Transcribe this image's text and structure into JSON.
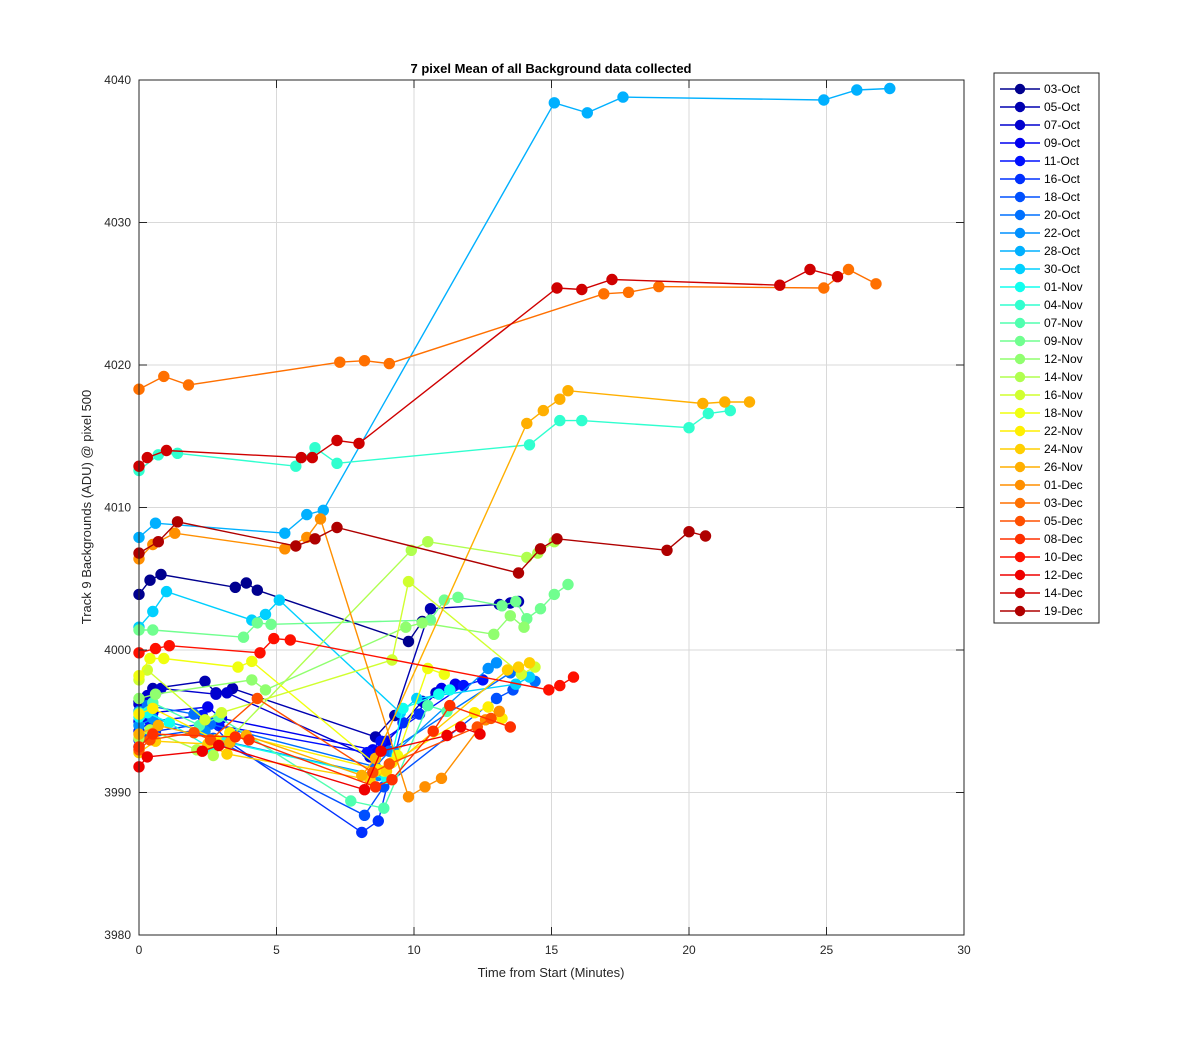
{
  "chart_data": {
    "type": "line",
    "title": "7 pixel Mean of all Background data collected",
    "xlabel": "Time from Start (Minutes)",
    "ylabel": "Track 9 Backgrounds (ADU) @ pixel 500",
    "xlim": [
      0,
      30
    ],
    "ylim": [
      3980,
      4040
    ],
    "xticks": [
      0,
      5,
      10,
      15,
      20,
      25,
      30
    ],
    "yticks": [
      3980,
      3990,
      4000,
      4010,
      4020,
      4030,
      4040
    ],
    "grid": true,
    "legend_position": "outside-right",
    "series": [
      {
        "name": "03-Oct",
        "color": "#00008f",
        "x": [
          0,
          0.4,
          0.8,
          3.5,
          3.9,
          4.3,
          9.8,
          10.3
        ],
        "y": [
          4003.9,
          4004.9,
          4005.3,
          4004.4,
          4004.7,
          4004.2,
          4000.6,
          4002.0
        ]
      },
      {
        "name": "05-Oct",
        "color": "#0000b0",
        "x": [
          0,
          0.5,
          2.4,
          2.8,
          3.4,
          8.6,
          9.3,
          10.6,
          13.1,
          13.5,
          13.8
        ],
        "y": [
          3996.4,
          3997.3,
          3997.8,
          3997.0,
          3997.3,
          3993.9,
          3995.4,
          4002.9,
          4003.2,
          4003.3,
          4003.4
        ]
      },
      {
        "name": "07-Oct",
        "color": "#0000cf",
        "x": [
          0,
          0.3,
          0.8,
          2.8,
          3.2,
          8.4,
          8.9,
          10.3,
          10.8
        ],
        "y": [
          3996.2,
          3996.8,
          3997.3,
          3996.9,
          3997.0,
          3992.5,
          3993.3,
          3996.4,
          3997.0
        ]
      },
      {
        "name": "09-Oct",
        "color": "#0000ef",
        "x": [
          0,
          0.5,
          2.5,
          3.0,
          8.5,
          9.0,
          11.0,
          11.5
        ],
        "y": [
          3995.0,
          3995.6,
          3996.0,
          3995.2,
          3993.0,
          3993.6,
          3997.3,
          3997.6
        ]
      },
      {
        "name": "11-Oct",
        "color": "#0010ff",
        "x": [
          0,
          0.4,
          2.3,
          2.9,
          8.3,
          8.8,
          11.8,
          12.5
        ],
        "y": [
          3994.3,
          3995.0,
          3995.4,
          3994.7,
          3992.8,
          3993.6,
          3997.5,
          3997.9
        ]
      },
      {
        "name": "16-Oct",
        "color": "#0030ff",
        "x": [
          0,
          0.6,
          2.6,
          3.3,
          8.1,
          8.7,
          9.6,
          10.2
        ],
        "y": [
          3993.7,
          3994.3,
          3994.9,
          3993.5,
          3987.2,
          3988.0,
          3994.9,
          3995.5
        ]
      },
      {
        "name": "18-Oct",
        "color": "#0050ff",
        "x": [
          0,
          0.4,
          2.2,
          2.7,
          8.2,
          8.9,
          13.0,
          13.6
        ],
        "y": [
          3993.2,
          3993.9,
          3994.4,
          3993.8,
          3988.4,
          3990.4,
          3996.6,
          3997.2
        ]
      },
      {
        "name": "20-Oct",
        "color": "#0070ff",
        "x": [
          0,
          0.3,
          2.0,
          2.6,
          8.6,
          9.1,
          13.5,
          14.4
        ],
        "y": [
          3995.7,
          3996.1,
          3995.5,
          3994.8,
          3991.8,
          3992.9,
          3998.4,
          3997.8
        ]
      },
      {
        "name": "22-Oct",
        "color": "#0090ff",
        "x": [
          0,
          0.5,
          2.4,
          3.1,
          8.7,
          9.3,
          12.7,
          13.0
        ],
        "y": [
          3994.7,
          3995.2,
          3994.3,
          3993.6,
          3991.2,
          3992.8,
          3998.7,
          3999.1
        ]
      },
      {
        "name": "28-Oct",
        "color": "#00b0ff",
        "x": [
          0,
          0.6,
          5.3,
          6.1,
          6.7,
          15.1,
          16.3,
          17.6,
          24.9,
          26.1,
          27.3
        ],
        "y": [
          4007.9,
          4008.9,
          4008.2,
          4009.5,
          4009.8,
          4038.4,
          4037.7,
          4038.8,
          4038.6,
          4039.3,
          4039.4
        ]
      },
      {
        "name": "30-Oct",
        "color": "#00d0ff",
        "x": [
          0,
          0.5,
          1.0,
          4.1,
          4.6,
          5.1,
          9.5,
          10.1,
          13.7,
          14.2
        ],
        "y": [
          4001.6,
          4002.7,
          4004.1,
          4002.1,
          4002.5,
          4003.5,
          3995.6,
          3996.6,
          3997.6,
          3998.1
        ]
      },
      {
        "name": "01-Nov",
        "color": "#10ffef",
        "x": [
          0,
          0.3,
          1.1,
          2.6,
          3.0,
          9.0,
          9.6,
          10.9,
          11.3
        ],
        "y": [
          3995.3,
          3995.6,
          3994.9,
          3993.1,
          3993.6,
          3991.0,
          3995.9,
          3996.9,
          3997.2
        ]
      },
      {
        "name": "04-Nov",
        "color": "#30ffcf",
        "x": [
          0,
          0.7,
          1.4,
          5.7,
          6.4,
          7.2,
          14.2,
          15.3,
          16.1,
          20.0,
          20.7,
          21.5
        ],
        "y": [
          4012.6,
          4013.7,
          4013.8,
          4012.9,
          4014.2,
          4013.1,
          4014.4,
          4016.1,
          4016.1,
          4015.6,
          4016.6,
          4016.8
        ]
      },
      {
        "name": "07-Nov",
        "color": "#50ffaf",
        "x": [
          0,
          0.5,
          2.2,
          2.9,
          7.7,
          8.9,
          10.5,
          11.2
        ],
        "y": [
          3995.6,
          3996.3,
          3994.7,
          3995.3,
          3989.4,
          3988.9,
          3996.1,
          3995.7
        ]
      },
      {
        "name": "09-Nov",
        "color": "#70ff8f",
        "x": [
          0,
          0.5,
          3.8,
          4.3,
          4.8,
          10.6,
          11.1,
          11.6,
          13.2,
          13.7,
          14.1,
          14.6,
          15.1,
          15.6
        ],
        "y": [
          4001.4,
          4001.4,
          4000.9,
          4001.9,
          4001.8,
          4002.1,
          4003.5,
          4003.7,
          4003.1,
          4003.4,
          4002.2,
          4002.9,
          4003.9,
          4004.6
        ]
      },
      {
        "name": "12-Nov",
        "color": "#90ff6f",
        "x": [
          0,
          0.6,
          4.1,
          4.6,
          9.7,
          10.3,
          12.9,
          13.5,
          14.0
        ],
        "y": [
          3996.6,
          3996.9,
          3997.9,
          3997.2,
          4001.6,
          4001.9,
          4001.1,
          4002.4,
          4001.6
        ]
      },
      {
        "name": "14-Nov",
        "color": "#b0ff4f",
        "x": [
          0,
          0.4,
          2.1,
          2.7,
          9.9,
          10.5,
          14.1,
          14.5,
          15.1
        ],
        "y": [
          3993.8,
          3994.4,
          3993.0,
          3992.6,
          4007.0,
          4007.6,
          4006.5,
          4006.8,
          4007.6
        ]
      },
      {
        "name": "16-Nov",
        "color": "#d0ff2f",
        "x": [
          0,
          0.3,
          2.4,
          3.0,
          9.2,
          9.8,
          13.9,
          14.4
        ],
        "y": [
          3997.9,
          3998.6,
          3995.1,
          3995.6,
          3999.3,
          4004.8,
          3998.3,
          3998.8
        ]
      },
      {
        "name": "18-Nov",
        "color": "#f0ff0f",
        "x": [
          0,
          0.4,
          0.9,
          3.6,
          4.1,
          8.9,
          9.4,
          10.5,
          11.1
        ],
        "y": [
          3998.2,
          3999.4,
          3999.4,
          3998.8,
          3999.2,
          3991.5,
          3992.6,
          3998.7,
          3998.3
        ]
      },
      {
        "name": "22-Nov",
        "color": "#ffef00",
        "x": [
          0,
          0.5,
          2.8,
          3.3,
          8.7,
          9.2,
          12.2,
          12.7,
          13.2
        ],
        "y": [
          3995.5,
          3995.9,
          3993.7,
          3994.2,
          3991.6,
          3992.1,
          3995.6,
          3996.0,
          3995.2
        ]
      },
      {
        "name": "24-Nov",
        "color": "#ffcf00",
        "x": [
          0,
          0.6,
          2.5,
          3.2,
          8.4,
          9.0,
          13.4,
          13.8,
          14.2
        ],
        "y": [
          3992.8,
          3993.6,
          3993.4,
          3992.7,
          3990.9,
          3991.5,
          3998.6,
          3998.8,
          3999.1
        ]
      },
      {
        "name": "26-Nov",
        "color": "#ffaf00",
        "x": [
          0,
          0.7,
          3.3,
          3.9,
          8.1,
          8.6,
          14.1,
          14.7,
          15.3,
          15.6,
          20.5,
          21.3,
          22.2
        ],
        "y": [
          3994.1,
          3994.7,
          3993.5,
          3994.0,
          3991.2,
          3992.4,
          4015.9,
          4016.8,
          4017.6,
          4018.2,
          4017.3,
          4017.4,
          4017.4
        ]
      },
      {
        "name": "01-Dec",
        "color": "#ff8f00",
        "x": [
          0,
          0.5,
          1.3,
          5.3,
          6.1,
          6.6,
          9.8,
          10.4,
          11.0,
          12.6,
          13.1
        ],
        "y": [
          4006.4,
          4007.4,
          4008.2,
          4007.1,
          4007.9,
          4009.2,
          3989.7,
          3990.4,
          3991.0,
          3995.1,
          3995.7
        ]
      },
      {
        "name": "03-Dec",
        "color": "#ff7000",
        "x": [
          0,
          0.9,
          1.8,
          7.3,
          8.2,
          9.1,
          16.9,
          17.8,
          18.9,
          24.9,
          25.8,
          26.8
        ],
        "y": [
          4018.3,
          4019.2,
          4018.6,
          4020.2,
          4020.3,
          4020.1,
          4025.0,
          4025.1,
          4025.5,
          4025.4,
          4026.7,
          4025.7
        ]
      },
      {
        "name": "05-Dec",
        "color": "#ff5000",
        "x": [
          0,
          0.4,
          2.0,
          2.6,
          4.3,
          8.5,
          9.1,
          12.3,
          12.8
        ],
        "y": [
          3993.0,
          3993.7,
          3994.2,
          3993.7,
          3996.6,
          3991.4,
          3992.0,
          3994.6,
          3995.2
        ]
      },
      {
        "name": "08-Dec",
        "color": "#ff3000",
        "x": [
          0,
          0.5,
          3.5,
          4.0,
          8.6,
          9.2,
          10.7,
          11.3,
          13.5
        ],
        "y": [
          3993.2,
          3994.1,
          3993.9,
          3993.7,
          3990.4,
          3990.9,
          3994.3,
          3996.1,
          3994.6
        ]
      },
      {
        "name": "10-Dec",
        "color": "#ff1000",
        "x": [
          0,
          0.6,
          1.1,
          4.4,
          4.9,
          5.5,
          14.9,
          15.3,
          15.8
        ],
        "y": [
          3999.8,
          4000.1,
          4000.3,
          3999.8,
          4000.8,
          4000.7,
          3997.2,
          3997.5,
          3998.1
        ]
      },
      {
        "name": "12-Dec",
        "color": "#ef0000",
        "x": [
          0,
          0.3,
          2.3,
          2.9,
          8.2,
          8.8,
          11.2,
          11.7,
          12.4
        ],
        "y": [
          3991.8,
          3992.5,
          3992.9,
          3993.3,
          3990.2,
          3992.9,
          3994.0,
          3994.6,
          3994.1
        ]
      },
      {
        "name": "14-Dec",
        "color": "#cf0000",
        "x": [
          0,
          0.3,
          1.0,
          5.9,
          6.3,
          7.2,
          8.0,
          15.2,
          16.1,
          17.2,
          23.3,
          24.4,
          25.4
        ],
        "y": [
          4012.9,
          4013.5,
          4014.0,
          4013.5,
          4013.5,
          4014.7,
          4014.5,
          4025.4,
          4025.3,
          4026.0,
          4025.6,
          4026.7,
          4026.2
        ]
      },
      {
        "name": "19-Dec",
        "color": "#af0000",
        "x": [
          0,
          0.7,
          1.4,
          5.7,
          6.4,
          7.2,
          13.8,
          14.6,
          15.2,
          19.2,
          20.0,
          20.6
        ],
        "y": [
          4006.8,
          4007.6,
          4009.0,
          4007.3,
          4007.8,
          4008.6,
          4005.4,
          4007.1,
          4007.8,
          4007.0,
          4008.3,
          4008.0
        ]
      }
    ]
  }
}
